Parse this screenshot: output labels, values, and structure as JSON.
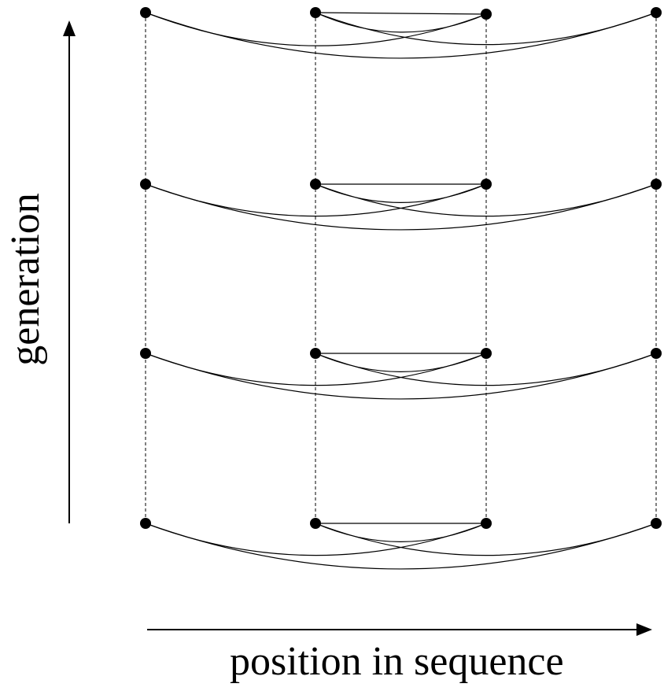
{
  "labels": {
    "x_axis": "position in sequence",
    "y_axis": "generation"
  },
  "colors": {
    "ink": "#000000",
    "background": "#ffffff"
  },
  "positions": [
    "1",
    "2",
    "3",
    "4"
  ],
  "generations": [
    "1",
    "2",
    "3",
    "4"
  ],
  "arcs": [
    {
      "from": 1,
      "to": 3
    },
    {
      "from": 1,
      "to": 4
    },
    {
      "from": 2,
      "to": 3
    },
    {
      "from": 2,
      "to": 4
    }
  ]
}
